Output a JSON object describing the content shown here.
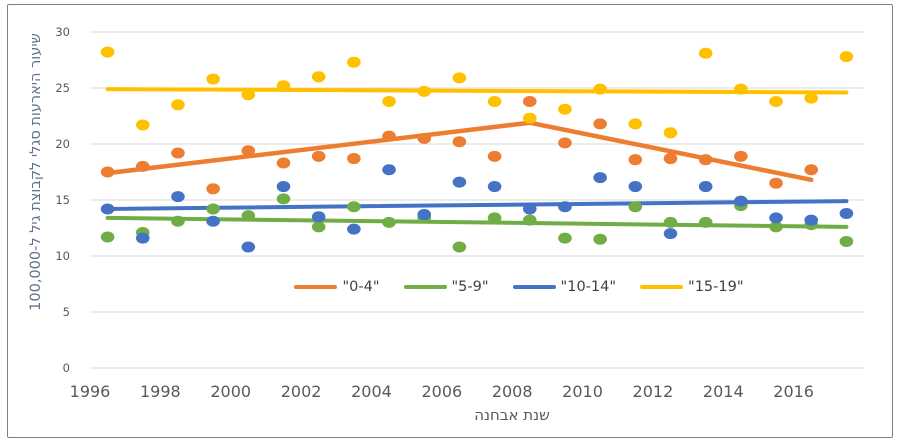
{
  "chart_data": {
    "type": "scatter",
    "title": "",
    "xlabel": "שנת אבחנה",
    "ylabel": "שיעור היארעות סגלי לקבוצת גיל ל-100,000",
    "ylim": [
      0,
      30
    ],
    "y_ticks": [
      0,
      5,
      10,
      15,
      20,
      25,
      30
    ],
    "x_ticks": [
      1996,
      1998,
      2000,
      2002,
      2004,
      2006,
      2008,
      2010,
      2012,
      2014,
      2016
    ],
    "grid": "horizontal-only",
    "legend_position": "inside-bottom-center",
    "grid_color": "#D9D9D9",
    "years": [
      1996,
      1997,
      1998,
      1999,
      2000,
      2001,
      2002,
      2003,
      2004,
      2005,
      2006,
      2007,
      2008,
      2009,
      2010,
      2011,
      2012,
      2013,
      2014,
      2015,
      2016,
      2017
    ],
    "series": [
      {
        "name": "\"0-4\"",
        "color": "#ED7D31",
        "marker": "dot",
        "values": [
          17.5,
          18.0,
          19.2,
          16.0,
          19.4,
          18.3,
          18.9,
          18.7,
          20.7,
          20.5,
          20.2,
          18.9,
          23.8,
          20.1,
          21.8,
          18.6,
          18.7,
          18.6,
          18.9,
          16.5,
          17.7,
          null
        ],
        "trend": [
          [
            1996,
            17.4
          ],
          [
            2008,
            21.9
          ],
          [
            2016,
            16.8
          ]
        ]
      },
      {
        "name": "\"5-9\"",
        "color": "#70AD47",
        "marker": "dot",
        "values": [
          11.7,
          12.1,
          13.1,
          14.2,
          13.6,
          15.1,
          12.6,
          14.4,
          13.0,
          13.4,
          10.8,
          13.4,
          13.2,
          11.6,
          11.5,
          14.4,
          13.0,
          13.0,
          14.5,
          12.6,
          12.8,
          11.3
        ],
        "trend": [
          [
            1996,
            13.4
          ],
          [
            2017,
            12.6
          ]
        ]
      },
      {
        "name": "\"10-14\"",
        "color": "#4472C4",
        "marker": "dot",
        "values": [
          14.2,
          11.6,
          15.3,
          13.1,
          10.8,
          16.2,
          13.5,
          12.4,
          17.7,
          13.7,
          16.6,
          16.2,
          14.2,
          14.4,
          17.0,
          16.2,
          12.0,
          16.2,
          14.9,
          13.4,
          13.2,
          13.8
        ],
        "trend": [
          [
            1996,
            14.2
          ],
          [
            2017,
            14.9
          ]
        ]
      },
      {
        "name": "\"15-19\"",
        "color": "#FFC000",
        "marker": "dot",
        "values": [
          28.2,
          21.7,
          23.5,
          25.8,
          24.4,
          25.2,
          26.0,
          27.3,
          23.8,
          24.7,
          25.9,
          23.8,
          22.3,
          23.1,
          24.9,
          21.8,
          21.0,
          28.1,
          24.9,
          23.8,
          24.1,
          27.8
        ],
        "trend": [
          [
            1996,
            24.9
          ],
          [
            2017,
            24.6
          ]
        ]
      }
    ]
  }
}
